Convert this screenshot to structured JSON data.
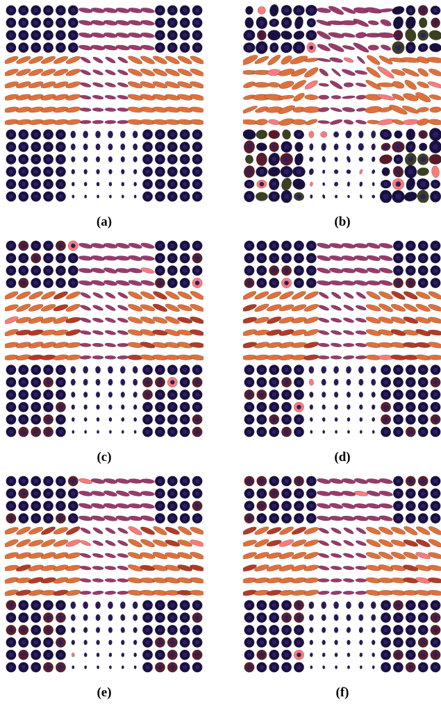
{
  "panels": [
    {
      "id": "a",
      "caption": "(a)",
      "variant": "clean"
    },
    {
      "id": "b",
      "caption": "(b)",
      "variant": "noisy"
    },
    {
      "id": "c",
      "caption": "(c)",
      "variant": "restored"
    },
    {
      "id": "d",
      "caption": "(d)",
      "variant": "restored"
    },
    {
      "id": "e",
      "caption": "(e)",
      "variant": "restored"
    },
    {
      "id": "f",
      "caption": "(f)",
      "variant": "restored"
    }
  ],
  "glyph_field": {
    "rows": 16,
    "cols": 16,
    "glyph": "ellipsoid",
    "colors": {
      "isotropic": "#1a1040",
      "isotropic_rim": "#2c1d66",
      "diagonal_band": "#9a3a6a",
      "horizontal_band": "#e0703a",
      "horizontal_band_dark": "#b23a26",
      "small_isotropic": "#2a1a5a",
      "highlight": "#ff7a7a"
    }
  }
}
